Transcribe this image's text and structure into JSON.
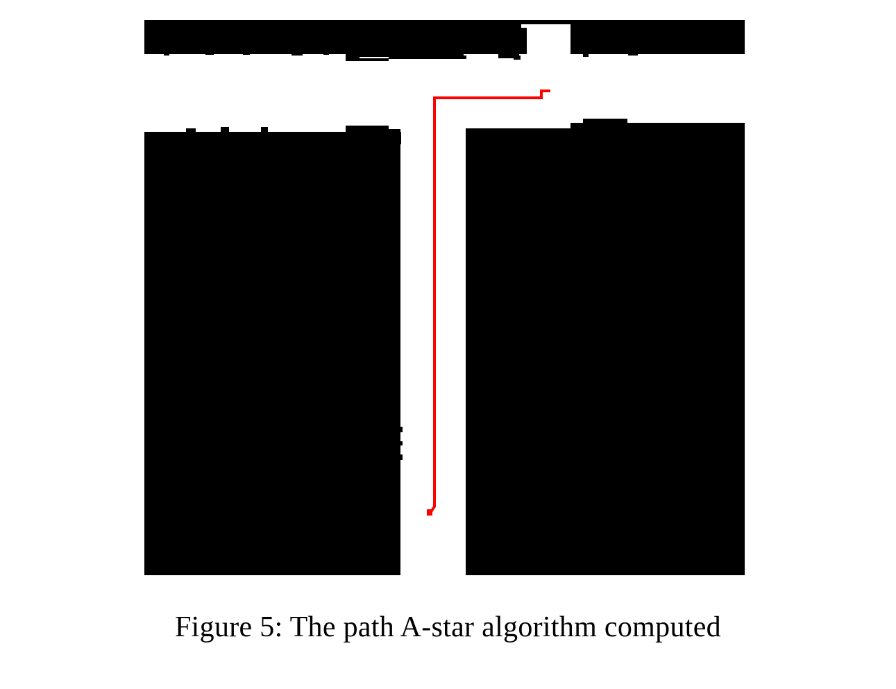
{
  "figure": {
    "caption": "Figure 5: The path A-star algorithm computed",
    "colors": {
      "background": "#ffffff",
      "obstacle": "#000000",
      "path": "#ff0000"
    }
  }
}
